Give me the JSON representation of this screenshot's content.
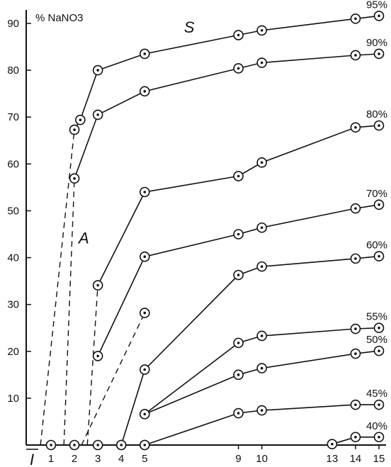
{
  "chart_data": {
    "type": "line",
    "ylabel": "% NaNO3",
    "ylim": [
      0,
      92
    ],
    "x_ticks": [
      {
        "x": 1,
        "label": "1"
      },
      {
        "x": 2,
        "label": "2"
      },
      {
        "x": 3,
        "label": "3"
      },
      {
        "x": 4,
        "label": "4"
      },
      {
        "x": 5,
        "label": "5"
      },
      {
        "x": 9,
        "label": "9"
      },
      {
        "x": 10,
        "label": "10"
      },
      {
        "x": 13,
        "label": "13"
      },
      {
        "x": 14,
        "label": "14"
      },
      {
        "x": 15,
        "label": "15"
      }
    ],
    "origin_label": "I",
    "y_ticks": [
      10,
      20,
      30,
      40,
      50,
      60,
      70,
      80,
      90
    ],
    "annotations": [
      {
        "text": "S",
        "x": 6.9,
        "y": 88
      },
      {
        "text": "A",
        "x": 2.4,
        "y": 43
      }
    ],
    "series": [
      {
        "name": "95%",
        "points": [
          [
            2,
            67.3
          ],
          [
            2.25,
            69.4
          ],
          [
            3,
            80
          ],
          [
            5,
            83.5
          ],
          [
            9,
            87.5
          ],
          [
            10,
            88.5
          ],
          [
            14,
            91
          ],
          [
            15,
            91.6
          ]
        ]
      },
      {
        "name": "90%",
        "points": [
          [
            2,
            56.9
          ],
          [
            3,
            70.5
          ],
          [
            5,
            75.5
          ],
          [
            9,
            80.4
          ],
          [
            10,
            81.6
          ],
          [
            14,
            83.2
          ],
          [
            15,
            83.5
          ]
        ]
      },
      {
        "name": "80%",
        "points": [
          [
            3,
            34.1
          ],
          [
            5,
            54
          ],
          [
            9,
            57.4
          ],
          [
            10,
            60.3
          ],
          [
            14,
            67.8
          ],
          [
            15,
            68.2
          ]
        ]
      },
      {
        "name": "70%",
        "points": [
          [
            3,
            19
          ],
          [
            5,
            40.2
          ],
          [
            9,
            45
          ],
          [
            10,
            46.4
          ],
          [
            14,
            50.5
          ],
          [
            15,
            51.3
          ]
        ]
      },
      {
        "name": "60%",
        "points": [
          [
            4,
            0
          ],
          [
            5,
            16.1
          ],
          [
            9,
            36.3
          ],
          [
            10,
            38.1
          ],
          [
            14,
            39.8
          ],
          [
            15,
            40.3
          ]
        ]
      },
      {
        "name": "55%",
        "points": [
          [
            5,
            6.6
          ],
          [
            9,
            21.8
          ],
          [
            10,
            23.3
          ],
          [
            14,
            24.8
          ],
          [
            15,
            25
          ]
        ]
      },
      {
        "name": "50%",
        "points": [
          [
            5,
            6.6
          ],
          [
            9,
            15
          ],
          [
            10,
            16.4
          ],
          [
            14,
            19.5
          ],
          [
            15,
            20.1
          ]
        ]
      },
      {
        "name": "45%",
        "points": [
          [
            5,
            0
          ],
          [
            9,
            6.8
          ],
          [
            10,
            7.4
          ],
          [
            14,
            8.6
          ],
          [
            15,
            8.6
          ]
        ]
      },
      {
        "name": "40%",
        "points": [
          [
            13,
            0.2
          ],
          [
            14,
            1.7
          ],
          [
            15,
            1.7
          ]
        ]
      }
    ],
    "baseline_points": [
      [
        1,
        0
      ],
      [
        2,
        0
      ],
      [
        3,
        0
      ],
      [
        4,
        0
      ],
      [
        5,
        0
      ]
    ],
    "dashed_segments": [
      [
        [
          0.55,
          0
        ],
        [
          2,
          67.3
        ]
      ],
      [
        [
          1.55,
          0
        ],
        [
          2,
          56.9
        ]
      ],
      [
        [
          2.55,
          0
        ],
        [
          3,
          34.1
        ]
      ],
      [
        [
          2.3,
          0
        ],
        [
          5,
          28.2
        ]
      ]
    ],
    "extra_points": [
      [
        5,
        28.2
      ]
    ]
  }
}
